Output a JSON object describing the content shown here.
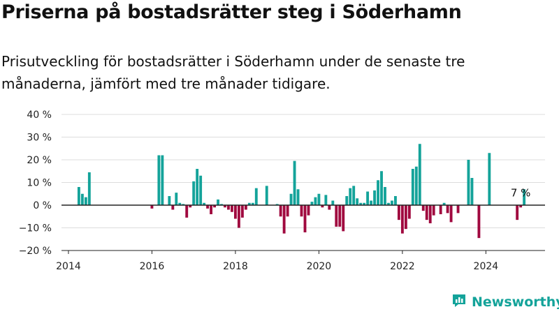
{
  "header": {
    "title": "Priserna på bostadsrätter steg i Söderhamn",
    "subtitle": "Prisutveckling för bostadsrätter i Söderhamn under de senaste tre månaderna, jämfört med tre månader tidigare."
  },
  "brand": {
    "name": "Newsworthy",
    "icon": "newsworthy-logo-icon"
  },
  "colors": {
    "positive": "#14a39a",
    "negative": "#a0093f",
    "grid": "#dddddd",
    "axis": "#222222"
  },
  "chart_data": {
    "type": "bar",
    "x_unit": "month",
    "ylim": [
      -20,
      40
    ],
    "yticks": [
      {
        "value": -20,
        "label": "−20 %"
      },
      {
        "value": -10,
        "label": "−10 %"
      },
      {
        "value": 0,
        "label": "0 %"
      },
      {
        "value": 10,
        "label": "10 %"
      },
      {
        "value": 20,
        "label": "20 %"
      },
      {
        "value": 30,
        "label": "30 %"
      },
      {
        "value": 40,
        "label": "40 %"
      }
    ],
    "xlim": [
      "2013-11",
      "2025-06"
    ],
    "xticks": [
      {
        "value": "2014-01",
        "label": "2014"
      },
      {
        "value": "2016-01",
        "label": "2016"
      },
      {
        "value": "2018-01",
        "label": "2018"
      },
      {
        "value": "2020-01",
        "label": "2020"
      },
      {
        "value": "2022-01",
        "label": "2022"
      },
      {
        "value": "2024-01",
        "label": "2024"
      }
    ],
    "grid": true,
    "annotation": {
      "text": "7 %",
      "x": "2024-11"
    },
    "points": [
      {
        "x": "2014-04",
        "y": 8
      },
      {
        "x": "2014-05",
        "y": 5
      },
      {
        "x": "2014-06",
        "y": 3.5
      },
      {
        "x": "2014-07",
        "y": 14.5
      },
      {
        "x": "2016-01",
        "y": -1.5
      },
      {
        "x": "2016-03",
        "y": 22
      },
      {
        "x": "2016-04",
        "y": 22
      },
      {
        "x": "2016-06",
        "y": 4
      },
      {
        "x": "2016-07",
        "y": -2
      },
      {
        "x": "2016-08",
        "y": 5.5
      },
      {
        "x": "2016-09",
        "y": 1
      },
      {
        "x": "2016-10",
        "y": 0.5
      },
      {
        "x": "2016-11",
        "y": -5.5
      },
      {
        "x": "2016-12",
        "y": -1
      },
      {
        "x": "2017-01",
        "y": 10.5
      },
      {
        "x": "2017-02",
        "y": 16
      },
      {
        "x": "2017-03",
        "y": 13
      },
      {
        "x": "2017-04",
        "y": 1
      },
      {
        "x": "2017-05",
        "y": -1.5
      },
      {
        "x": "2017-06",
        "y": -4
      },
      {
        "x": "2017-07",
        "y": -1
      },
      {
        "x": "2017-08",
        "y": 2.5
      },
      {
        "x": "2017-09",
        "y": 0.5
      },
      {
        "x": "2017-10",
        "y": -1
      },
      {
        "x": "2017-11",
        "y": -2
      },
      {
        "x": "2017-12",
        "y": -3
      },
      {
        "x": "2018-01",
        "y": -6
      },
      {
        "x": "2018-02",
        "y": -10
      },
      {
        "x": "2018-03",
        "y": -5.5
      },
      {
        "x": "2018-04",
        "y": -2
      },
      {
        "x": "2018-05",
        "y": 1
      },
      {
        "x": "2018-06",
        "y": 1
      },
      {
        "x": "2018-07",
        "y": 7.5
      },
      {
        "x": "2018-10",
        "y": 8.5
      },
      {
        "x": "2019-01",
        "y": 0.5
      },
      {
        "x": "2019-02",
        "y": -5
      },
      {
        "x": "2019-03",
        "y": -12.5
      },
      {
        "x": "2019-04",
        "y": -5
      },
      {
        "x": "2019-05",
        "y": 5
      },
      {
        "x": "2019-06",
        "y": 19.5
      },
      {
        "x": "2019-07",
        "y": 7
      },
      {
        "x": "2019-08",
        "y": -5
      },
      {
        "x": "2019-09",
        "y": -12
      },
      {
        "x": "2019-10",
        "y": -4.5
      },
      {
        "x": "2019-11",
        "y": 1.5
      },
      {
        "x": "2019-12",
        "y": 3.5
      },
      {
        "x": "2020-01",
        "y": 5
      },
      {
        "x": "2020-02",
        "y": -1
      },
      {
        "x": "2020-03",
        "y": 4.5
      },
      {
        "x": "2020-04",
        "y": -2
      },
      {
        "x": "2020-05",
        "y": 2
      },
      {
        "x": "2020-06",
        "y": -9.5
      },
      {
        "x": "2020-07",
        "y": -9.5
      },
      {
        "x": "2020-08",
        "y": -11.5
      },
      {
        "x": "2020-09",
        "y": 4
      },
      {
        "x": "2020-10",
        "y": 7.5
      },
      {
        "x": "2020-11",
        "y": 8.5
      },
      {
        "x": "2020-12",
        "y": 3
      },
      {
        "x": "2021-01",
        "y": 1
      },
      {
        "x": "2021-02",
        "y": 1
      },
      {
        "x": "2021-03",
        "y": 6
      },
      {
        "x": "2021-04",
        "y": 2
      },
      {
        "x": "2021-05",
        "y": 6.5
      },
      {
        "x": "2021-06",
        "y": 11
      },
      {
        "x": "2021-07",
        "y": 15
      },
      {
        "x": "2021-08",
        "y": 8
      },
      {
        "x": "2021-09",
        "y": 1
      },
      {
        "x": "2021-10",
        "y": 2
      },
      {
        "x": "2021-11",
        "y": 4
      },
      {
        "x": "2021-12",
        "y": -6.5
      },
      {
        "x": "2022-01",
        "y": -12.5
      },
      {
        "x": "2022-02",
        "y": -10.5
      },
      {
        "x": "2022-03",
        "y": -6
      },
      {
        "x": "2022-04",
        "y": 16
      },
      {
        "x": "2022-05",
        "y": 17
      },
      {
        "x": "2022-06",
        "y": 27
      },
      {
        "x": "2022-07",
        "y": -2.5
      },
      {
        "x": "2022-08",
        "y": -6.5
      },
      {
        "x": "2022-09",
        "y": -8
      },
      {
        "x": "2022-10",
        "y": -4.5
      },
      {
        "x": "2022-12",
        "y": -4
      },
      {
        "x": "2023-01",
        "y": 1
      },
      {
        "x": "2023-02",
        "y": -3.5
      },
      {
        "x": "2023-03",
        "y": -7.5
      },
      {
        "x": "2023-05",
        "y": -3.5
      },
      {
        "x": "2023-08",
        "y": 20
      },
      {
        "x": "2023-09",
        "y": 12
      },
      {
        "x": "2023-11",
        "y": -14.5
      },
      {
        "x": "2024-02",
        "y": 23
      },
      {
        "x": "2024-10",
        "y": -6.5
      },
      {
        "x": "2024-11",
        "y": -1
      },
      {
        "x": "2024-12",
        "y": 7
      }
    ]
  }
}
